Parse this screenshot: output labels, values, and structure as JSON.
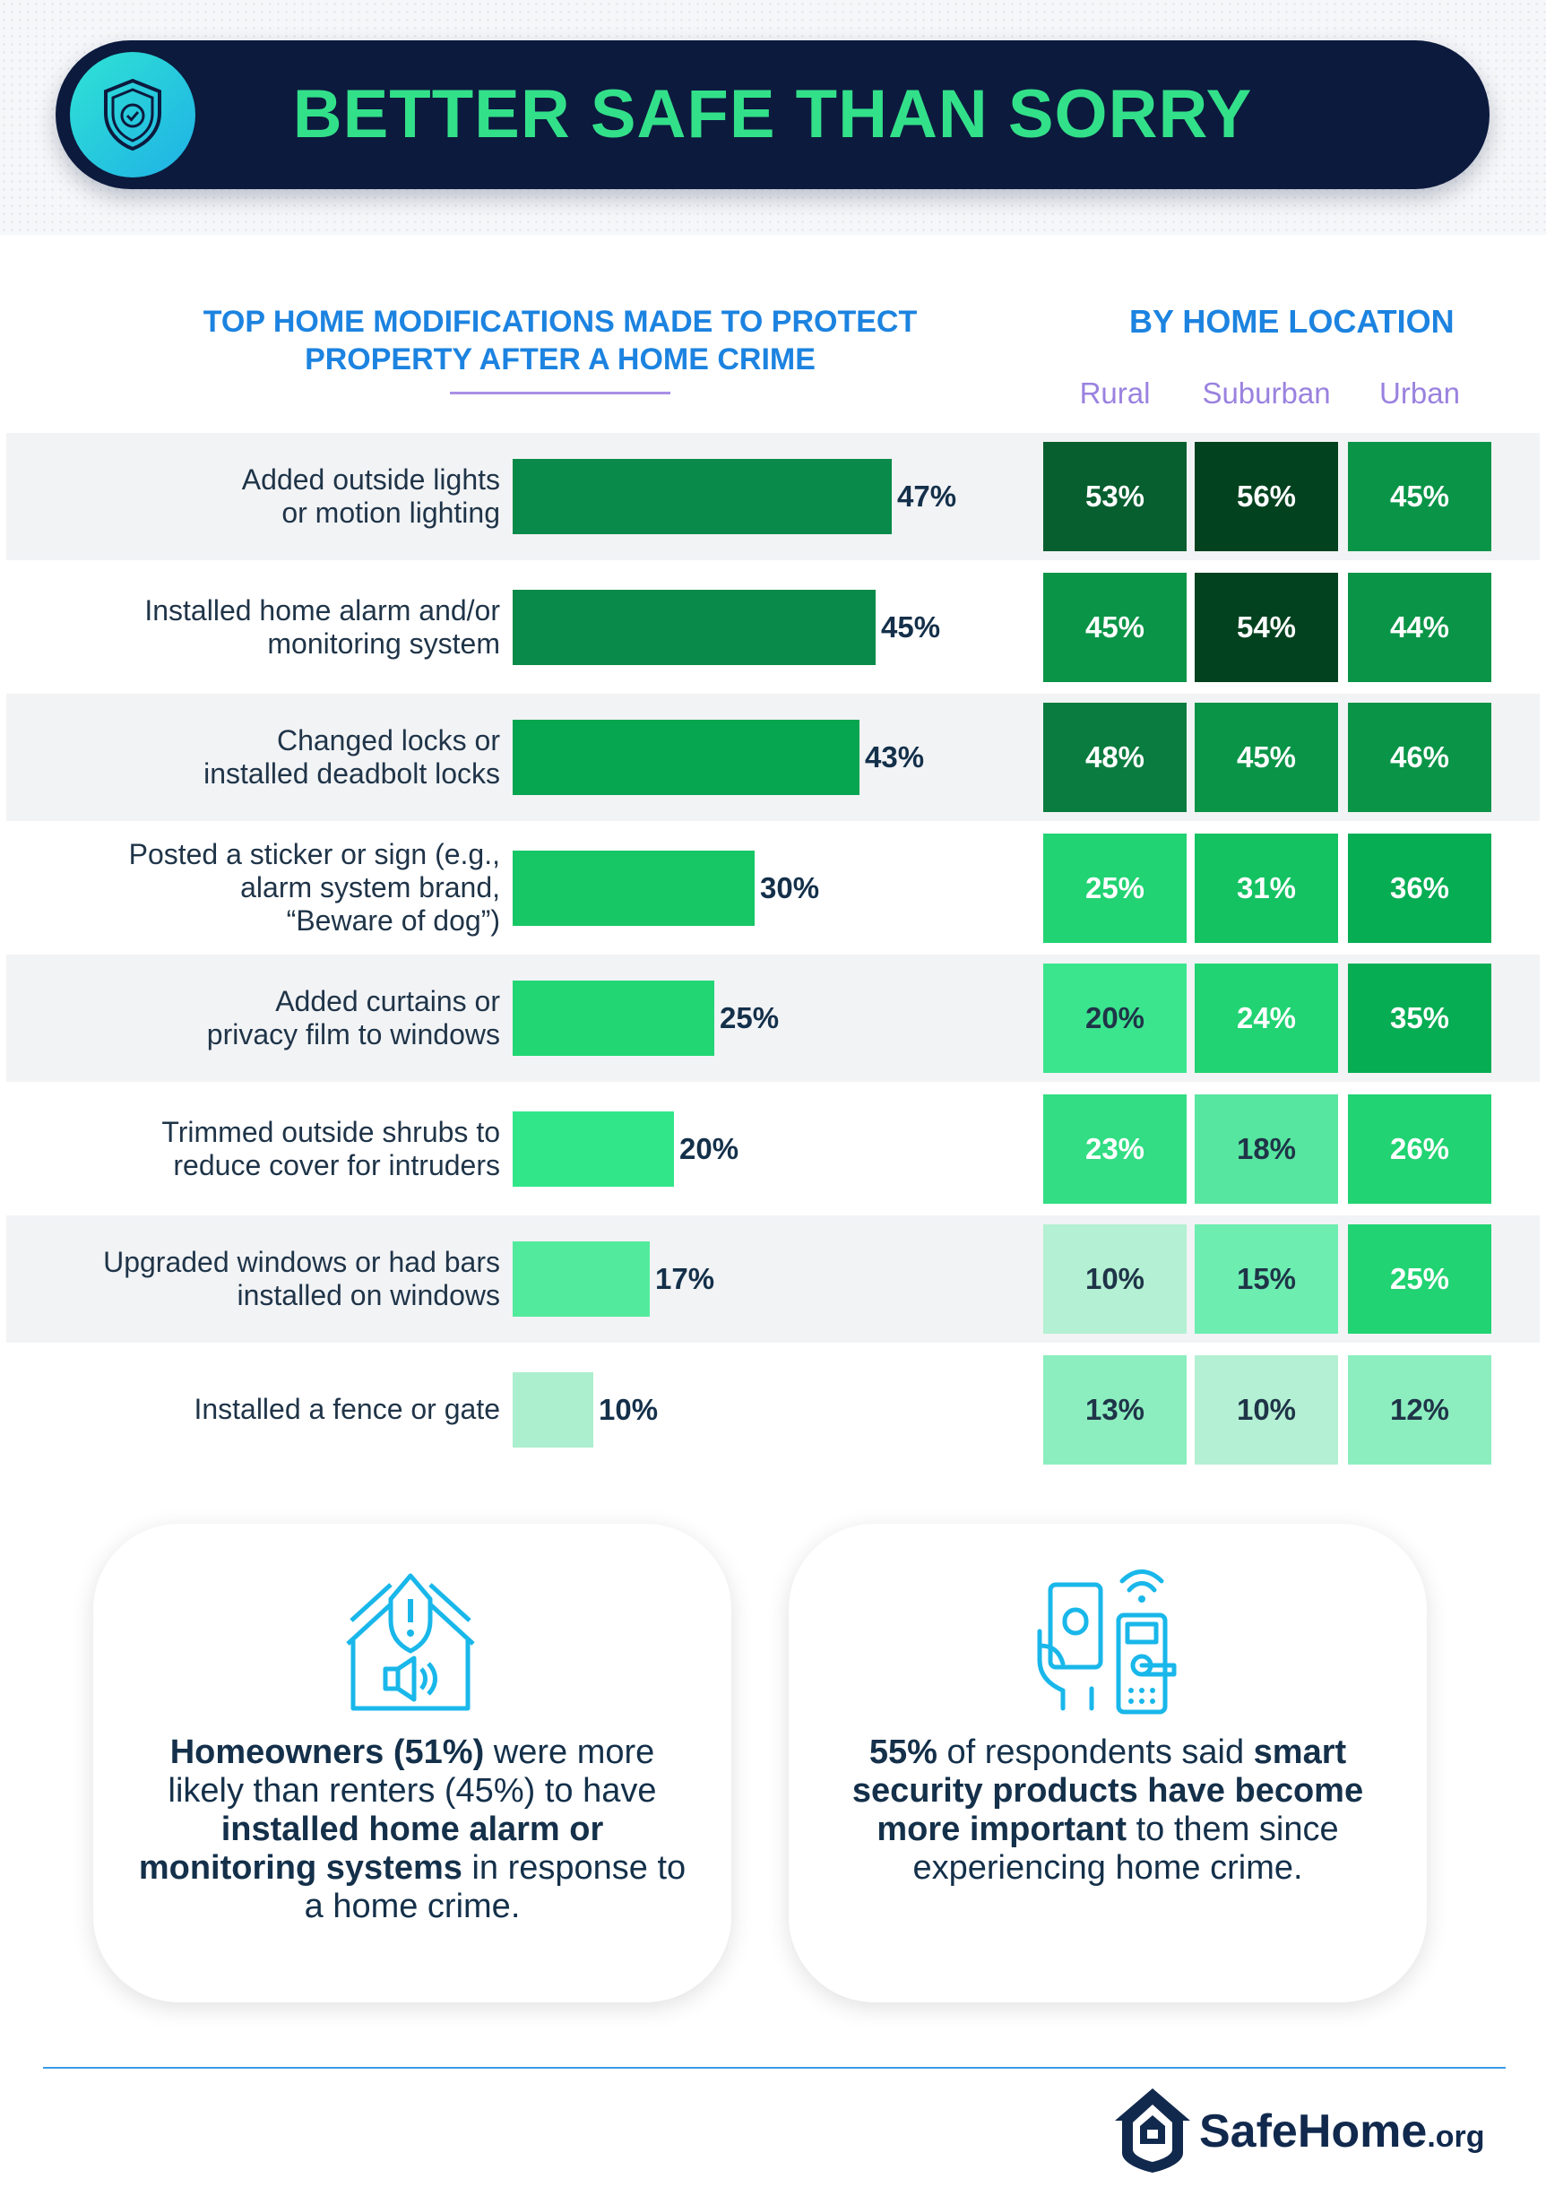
{
  "banner": {
    "title": "BETTER SAFE THAN SORRY",
    "icon": "shield-check-icon"
  },
  "left_title_lines": [
    "TOP HOME MODIFICATIONS MADE TO PROTECT",
    "PROPERTY AFTER A HOME CRIME"
  ],
  "right_title": "BY HOME LOCATION",
  "chart_data": {
    "type": "bar",
    "title": "TOP HOME MODIFICATIONS MADE TO PROTECT PROPERTY AFTER A HOME CRIME",
    "orientation": "horizontal",
    "categories": [
      [
        "Added outside lights",
        "or motion lighting"
      ],
      [
        "Installed home alarm and/or",
        "monitoring system"
      ],
      [
        "Changed locks or",
        "installed deadbolt locks"
      ],
      [
        "Posted a sticker or sign (e.g.,",
        "alarm system brand,",
        "“Beware of dog”)"
      ],
      [
        "Added curtains or",
        "privacy film to windows"
      ],
      [
        "Trimmed outside shrubs to",
        "reduce cover for intruders"
      ],
      [
        "Upgraded windows or had bars",
        "installed on windows"
      ],
      [
        "Installed a fence or gate"
      ]
    ],
    "values": [
      47,
      45,
      43,
      30,
      25,
      20,
      17,
      10
    ],
    "value_suffix": "%",
    "xlim": [
      0,
      100
    ],
    "heatmap": {
      "type": "heatmap",
      "title": "BY HOME LOCATION",
      "columns": [
        "Rural",
        "Suburban",
        "Urban"
      ],
      "values": [
        [
          53,
          56,
          45
        ],
        [
          45,
          54,
          44
        ],
        [
          48,
          45,
          46
        ],
        [
          25,
          31,
          36
        ],
        [
          20,
          24,
          35
        ],
        [
          23,
          18,
          26
        ],
        [
          10,
          15,
          25
        ],
        [
          13,
          10,
          12
        ]
      ]
    }
  },
  "callouts": [
    {
      "icon": "house-alarm-icon",
      "segments": [
        {
          "t": "Homeowners (51%)",
          "b": true
        },
        {
          "t": " were more likely than renters (45%) to have ",
          "b": false
        },
        {
          "t": "installed home alarm or monitoring systems",
          "b": true
        },
        {
          "t": " in response to a home crime.",
          "b": false
        }
      ]
    },
    {
      "icon": "smart-lock-phone-icon",
      "segments": [
        {
          "t": "55%",
          "b": true
        },
        {
          "t": " of respondents said ",
          "b": false
        },
        {
          "t": "smart security products have become more important",
          "b": true
        },
        {
          "t": " to them since experiencing home crime.",
          "b": false
        }
      ]
    }
  ],
  "logo": {
    "name": "SafeHome",
    "suffix": ".org",
    "icon": "house-shield-logo-icon"
  },
  "colors": {
    "navy": "#0c1a3e",
    "title_green": "#33e08a",
    "heading_blue": "#1c83e0",
    "column_purple": "#9a82df"
  }
}
